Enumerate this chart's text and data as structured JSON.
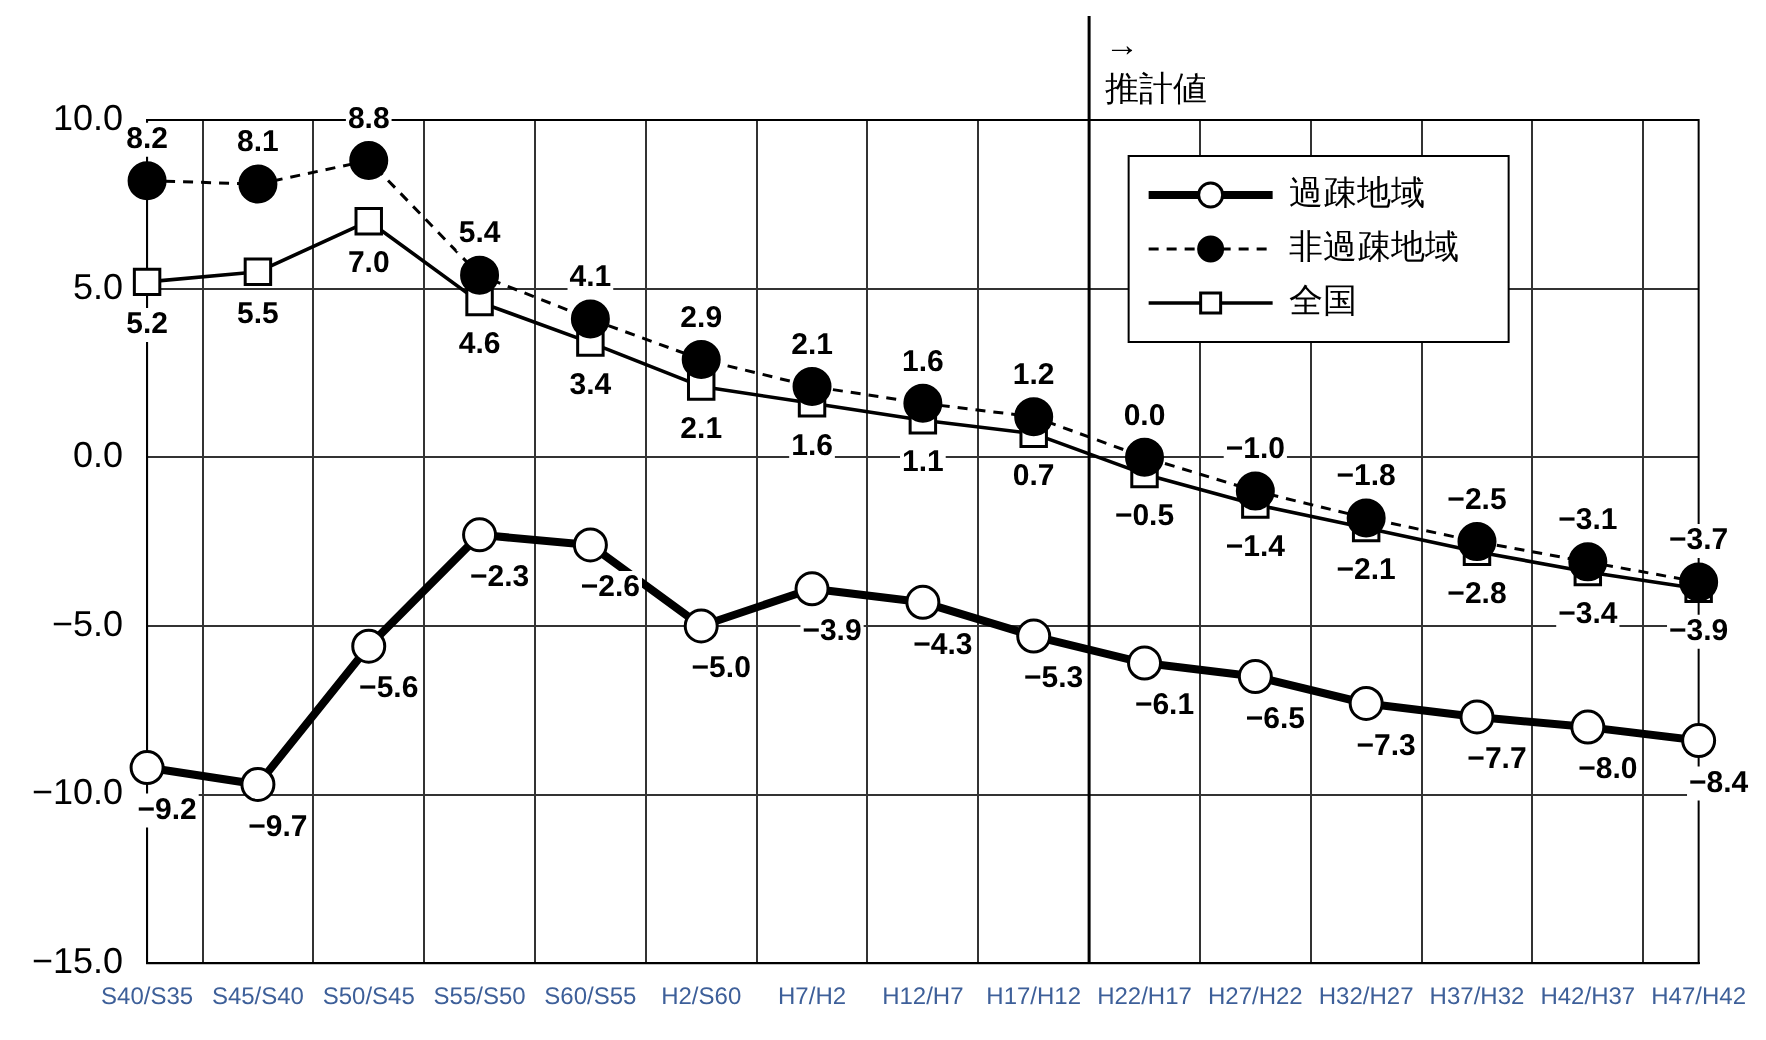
{
  "chart_data": {
    "type": "line",
    "categories": [
      "S40/S35",
      "S45/S40",
      "S50/S45",
      "S55/S50",
      "S60/S55",
      "H2/S60",
      "H7/H2",
      "H12/H7",
      "H17/H12",
      "H22/H17",
      "H27/H22",
      "H32/H27",
      "H37/H32",
      "H42/H37",
      "H47/H42"
    ],
    "series": [
      {
        "name": "過疎地域",
        "color": "#000000",
        "marker": "circle",
        "line_style": "solid",
        "values": [
          -9.2,
          -9.7,
          -5.6,
          -2.3,
          -2.6,
          -5.0,
          -3.9,
          -4.3,
          -5.3,
          -6.1,
          -6.5,
          -7.3,
          -7.7,
          -8.0,
          -8.4
        ],
        "value_labels": [
          "−9.2",
          "−9.7",
          "−5.6",
          "−2.3",
          "−2.6",
          "−5.0",
          "−3.9",
          "−4.3",
          "−5.3",
          "−6.1",
          "−6.5",
          "−7.3",
          "−7.7",
          "−8.0",
          "−8.4"
        ]
      },
      {
        "name": "非過疎地域",
        "color": "#000000",
        "marker": "circle",
        "line_style": "dashed",
        "values": [
          8.2,
          8.1,
          8.8,
          5.4,
          4.1,
          2.9,
          2.1,
          1.6,
          1.2,
          0.0,
          -1.0,
          -1.8,
          -2.5,
          -3.1,
          -3.7
        ],
        "value_labels": [
          "8.2",
          "8.1",
          "8.8",
          "5.4",
          "4.1",
          "2.9",
          "2.1",
          "1.6",
          "1.2",
          "0.0",
          "−1.0",
          "−1.8",
          "−2.5",
          "−3.1",
          "−3.7"
        ]
      },
      {
        "name": "全国",
        "color": "#000000",
        "marker": "square",
        "line_style": "solid",
        "values": [
          5.2,
          5.5,
          7.0,
          4.6,
          3.4,
          2.1,
          1.6,
          1.1,
          0.7,
          -0.5,
          -1.4,
          -2.1,
          -2.8,
          -3.4,
          -3.9
        ],
        "value_labels": [
          "5.2",
          "5.5",
          "7.0",
          "4.6",
          "3.4",
          "2.1",
          "1.6",
          "1.1",
          "0.7",
          "−0.5",
          "−1.4",
          "−2.1",
          "−2.8",
          "−3.4",
          "−3.9"
        ]
      }
    ],
    "ylim": [
      -15,
      10
    ],
    "yticks": [
      {
        "value": -15,
        "label": "−15.0"
      },
      {
        "value": -10,
        "label": "−10.0"
      },
      {
        "value": -5,
        "label": "−5.0"
      },
      {
        "value": 0,
        "label": "0.0"
      },
      {
        "value": 5,
        "label": "5.0"
      },
      {
        "value": 10,
        "label": "10.0"
      }
    ],
    "ref_lines": [
      {
        "axis": "x",
        "value": "H22/H17",
        "label": "→ 推計値",
        "color": "#000000"
      }
    ],
    "grid": true,
    "legend": "top right"
  }
}
